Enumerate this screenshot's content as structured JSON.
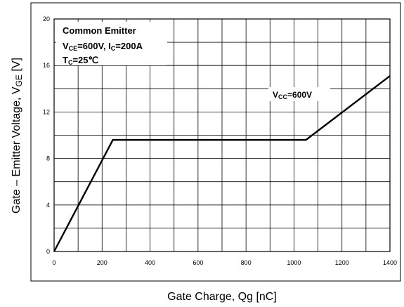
{
  "chart_data": {
    "type": "line",
    "title": "",
    "xlabel": "Gate Charge, Qg  [nC]",
    "ylabel": "Gate – Emitter Voltage, V",
    "ylabel_sub": "GE",
    "ylabel_unit": " [V]",
    "xlim": [
      0,
      1400
    ],
    "ylim": [
      0,
      20
    ],
    "x_ticks": [
      0,
      200,
      400,
      600,
      800,
      1000,
      1200,
      1400
    ],
    "y_ticks": [
      0,
      4,
      8,
      12,
      16,
      20
    ],
    "grid": true,
    "series": [
      {
        "x": [
          0,
          245,
          1050,
          1400
        ],
        "y": [
          0,
          9.6,
          9.6,
          15.1
        ]
      }
    ],
    "annotations": {
      "conditions_line1": "Common Emitter",
      "conditions_line2_a": "V",
      "conditions_line2_a_sub": "CE",
      "conditions_line2_b": "=600V, I",
      "conditions_line2_b_sub": "C",
      "conditions_line2_c": "=200A",
      "conditions_line3_a": "T",
      "conditions_line3_a_sub": "C",
      "conditions_line3_b": "=25℃",
      "vcc_a": "V",
      "vcc_sub": "CC",
      "vcc_b": "=600V"
    }
  }
}
